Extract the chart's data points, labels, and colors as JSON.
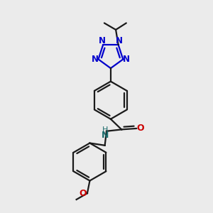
{
  "background_color": "#ebebeb",
  "bond_color": "#1a1a1a",
  "nitrogen_color": "#0000cc",
  "oxygen_color": "#cc0000",
  "nitrogen_amide_color": "#1a6b6b",
  "line_width": 1.6,
  "font_size": 8.5,
  "figsize": [
    3.0,
    3.0
  ],
  "dpi": 100,
  "xlim": [
    0,
    10
  ],
  "ylim": [
    0,
    10
  ]
}
